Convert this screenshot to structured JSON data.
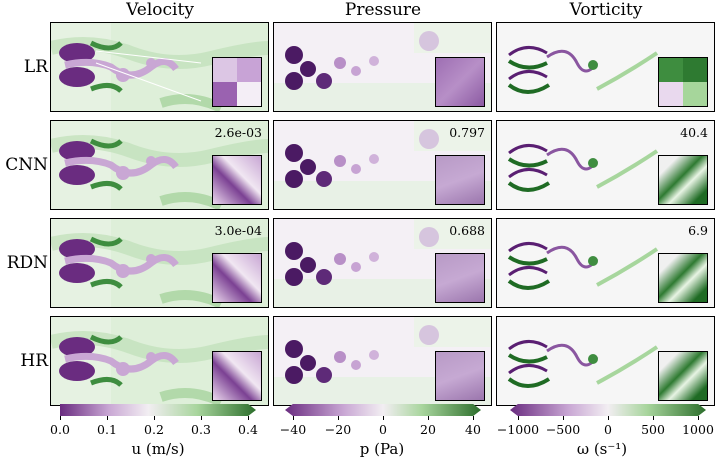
{
  "columns": [
    "Velocity",
    "Pressure",
    "Vorticity"
  ],
  "rows": [
    "LR",
    "CNN",
    "RDN",
    "HR"
  ],
  "metrics": {
    "CNN": [
      "2.6e-03",
      "0.797",
      "40.4"
    ],
    "RDN": [
      "3.0e-04",
      "0.688",
      "6.9"
    ]
  },
  "colorbars": [
    {
      "ticks": [
        "0.0",
        "0.1",
        "0.2",
        "0.3",
        "0.4"
      ],
      "label": "u (m/s)",
      "left": "#6a2c80",
      "mid": "#f2eef2",
      "right": "#2c6e2b"
    },
    {
      "ticks": [
        "−40",
        "−20",
        "0",
        "20",
        "40"
      ],
      "label": "p (Pa)",
      "left": "#6a2c80",
      "mid": "#f2eef2",
      "right": "#2c6e2b"
    },
    {
      "ticks": [
        "−1000",
        "−500",
        "0",
        "500",
        "1000"
      ],
      "label": "ω (s⁻¹)",
      "left": "#6a2c80",
      "mid": "#f2eef2",
      "right": "#2c6e2b"
    }
  ]
}
